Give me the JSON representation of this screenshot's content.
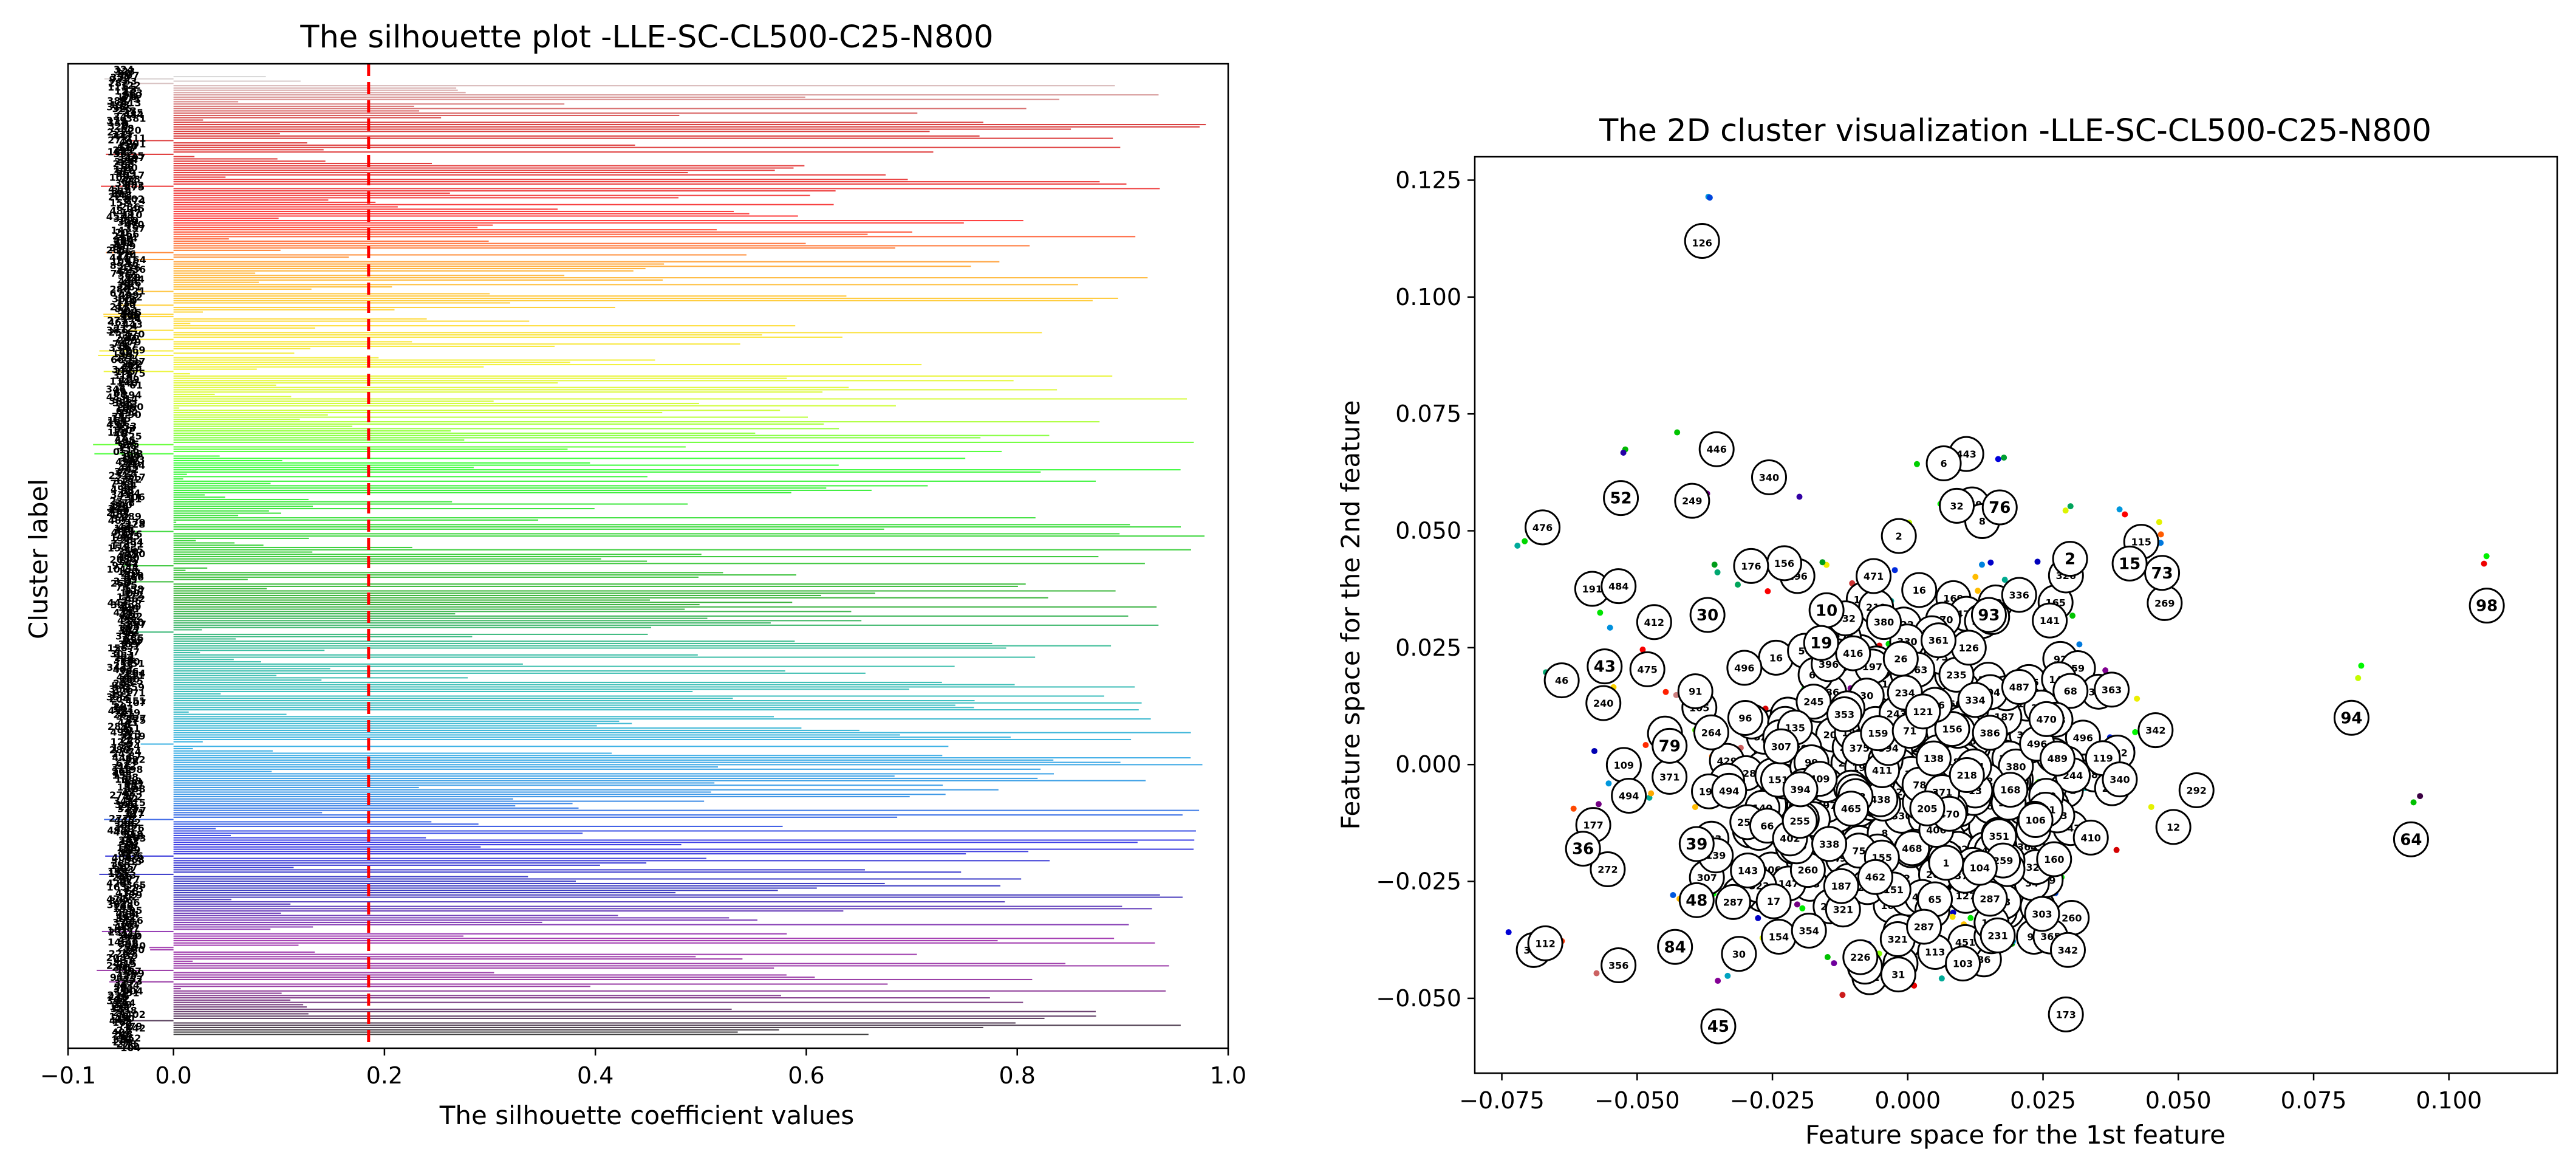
{
  "chart_data": [
    {
      "type": "bar",
      "subtype": "silhouette",
      "title": "The silhouette plot -LLE-SC-CL500-C25-N800",
      "xlabel": "The silhouette coefficient values",
      "ylabel": "Cluster label",
      "xlim": [
        -0.1,
        1.0
      ],
      "xticks": [
        "−0.1",
        "0.0",
        "0.2",
        "0.4",
        "0.6",
        "0.8",
        "1.0"
      ],
      "average_silhouette": 0.185,
      "n_samples": 800,
      "n_clusters": 500,
      "colormap": "nipy_spectral",
      "max_value_approx": 0.98,
      "min_value_approx": -0.1
    },
    {
      "type": "scatter",
      "title": "The 2D cluster visualization -LLE-SC-CL500-C25-N800",
      "xlabel": "Feature space for the 1st feature",
      "ylabel": "Feature space for the 2nd feature",
      "xlim": [
        -0.08,
        0.12
      ],
      "ylim": [
        -0.066,
        0.13
      ],
      "xticks": [
        "−0.075",
        "−0.050",
        "−0.025",
        "0.000",
        "0.025",
        "0.050",
        "0.075",
        "0.100"
      ],
      "yticks": [
        "−0.050",
        "−0.025",
        "0.000",
        "0.025",
        "0.050",
        "0.075",
        "0.100",
        "0.125"
      ],
      "center_labels": [
        {
          "label": "126",
          "x": -0.038,
          "y": 0.112
        },
        {
          "label": "52",
          "x": -0.053,
          "y": 0.057
        },
        {
          "label": "45",
          "x": -0.035,
          "y": -0.056
        },
        {
          "label": "84",
          "x": -0.043,
          "y": -0.039
        },
        {
          "label": "48",
          "x": -0.039,
          "y": -0.029
        },
        {
          "label": "39",
          "x": -0.039,
          "y": -0.017
        },
        {
          "label": "79",
          "x": -0.044,
          "y": 0.004
        },
        {
          "label": "43",
          "x": -0.056,
          "y": 0.021
        },
        {
          "label": "36",
          "x": -0.06,
          "y": -0.018
        },
        {
          "label": "94",
          "x": 0.082,
          "y": 0.01
        },
        {
          "label": "64",
          "x": 0.093,
          "y": -0.016
        },
        {
          "label": "98",
          "x": 0.107,
          "y": 0.034
        },
        {
          "label": "73",
          "x": 0.047,
          "y": 0.041
        },
        {
          "label": "15",
          "x": 0.041,
          "y": 0.043
        },
        {
          "label": "76",
          "x": 0.017,
          "y": 0.055
        },
        {
          "label": "93",
          "x": 0.015,
          "y": 0.032
        },
        {
          "label": "10",
          "x": -0.015,
          "y": 0.033
        },
        {
          "label": "19",
          "x": -0.016,
          "y": 0.026
        },
        {
          "label": "30",
          "x": -0.037,
          "y": 0.032
        },
        {
          "label": "2",
          "x": 0.03,
          "y": 0.044
        }
      ]
    }
  ]
}
